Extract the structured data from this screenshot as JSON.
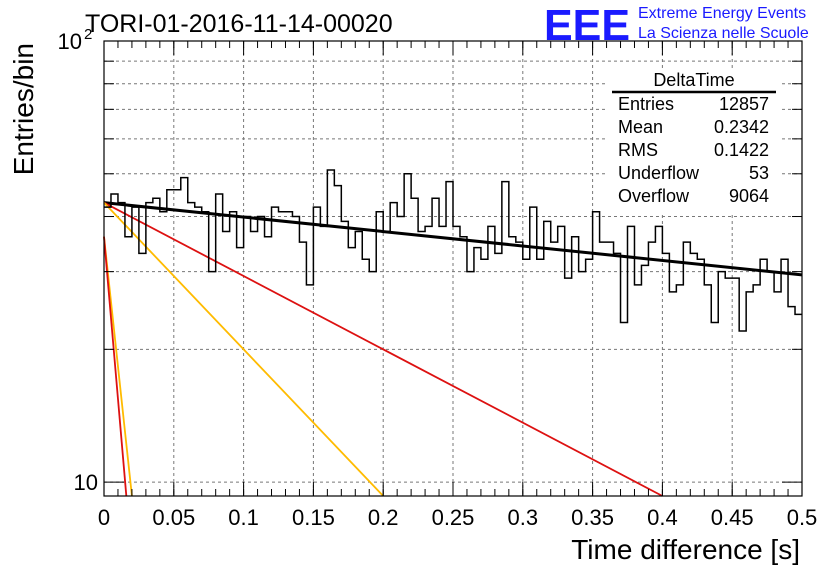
{
  "chart_data": {
    "type": "line",
    "title": "TORI-01-2016-11-14-00020",
    "xlabel": "Time difference [s]",
    "ylabel": "Entries/bin",
    "xlim": [
      0,
      0.5
    ],
    "ylim": [
      9.3,
      100
    ],
    "y_scale": "log",
    "grid": true,
    "x_ticks": [
      "0",
      "0.05",
      "0.1",
      "0.15",
      "0.2",
      "0.25",
      "0.3",
      "0.35",
      "0.4",
      "0.45",
      "0.5"
    ],
    "y_tick_labels": [
      {
        "value": 100,
        "label": "10",
        "exponent": "2"
      },
      {
        "value": 10,
        "label": "10",
        "exponent": ""
      }
    ],
    "histogram": {
      "name": "DeltaTime",
      "bin_width": 0.005,
      "color": "#000000",
      "values": [
        42,
        45,
        43,
        36,
        42,
        33,
        43,
        44,
        41,
        46,
        46,
        49,
        43,
        42,
        41,
        30,
        45,
        37,
        41,
        34,
        40,
        37,
        40,
        36,
        42,
        41,
        41,
        40,
        35,
        28,
        42,
        38,
        51,
        47,
        39,
        34,
        37,
        32,
        30,
        41,
        37,
        43,
        40,
        50,
        44,
        37,
        38,
        44,
        38,
        48,
        38,
        36,
        30,
        34,
        32,
        38,
        33,
        48,
        36,
        35,
        32,
        42,
        32,
        39,
        35,
        38,
        29,
        36,
        30,
        32,
        41,
        35,
        35,
        33,
        23,
        38,
        28,
        31,
        35,
        38,
        33,
        27,
        28,
        35,
        33,
        32,
        28,
        23,
        30,
        29,
        29,
        22,
        27,
        28,
        32,
        30,
        27,
        32,
        25,
        24,
        27
      ]
    },
    "fits": [
      {
        "color": "#000000",
        "width": 3,
        "points": [
          [
            0,
            43
          ],
          [
            0.5,
            29.5
          ]
        ]
      },
      {
        "color": "#dd1111",
        "width": 1.8,
        "points": [
          [
            0,
            43
          ],
          [
            0.4,
            9.3
          ]
        ]
      },
      {
        "color": "#ffbb00",
        "width": 1.8,
        "points": [
          [
            0,
            43
          ],
          [
            0.2,
            9.3
          ]
        ]
      },
      {
        "color": "#ffbb00",
        "width": 1.8,
        "points": [
          [
            0,
            36
          ],
          [
            0.02,
            9.3
          ]
        ]
      },
      {
        "color": "#dd1111",
        "width": 1.8,
        "points": [
          [
            0,
            36
          ],
          [
            0.016,
            9.3
          ]
        ]
      }
    ],
    "stats_box": {
      "title": "DeltaTime",
      "rows": [
        {
          "label": "Entries",
          "value": "12857"
        },
        {
          "label": "Mean",
          "value": "0.2342"
        },
        {
          "label": "RMS",
          "value": "0.1422"
        },
        {
          "label": "Underflow",
          "value": "53"
        },
        {
          "label": "Overflow",
          "value": "9064"
        }
      ]
    }
  },
  "logo": {
    "big_text": "EEE",
    "line1": "Extreme Energy Events",
    "line2": "La Scienza nelle Scuole",
    "color": "#1a1aff"
  }
}
